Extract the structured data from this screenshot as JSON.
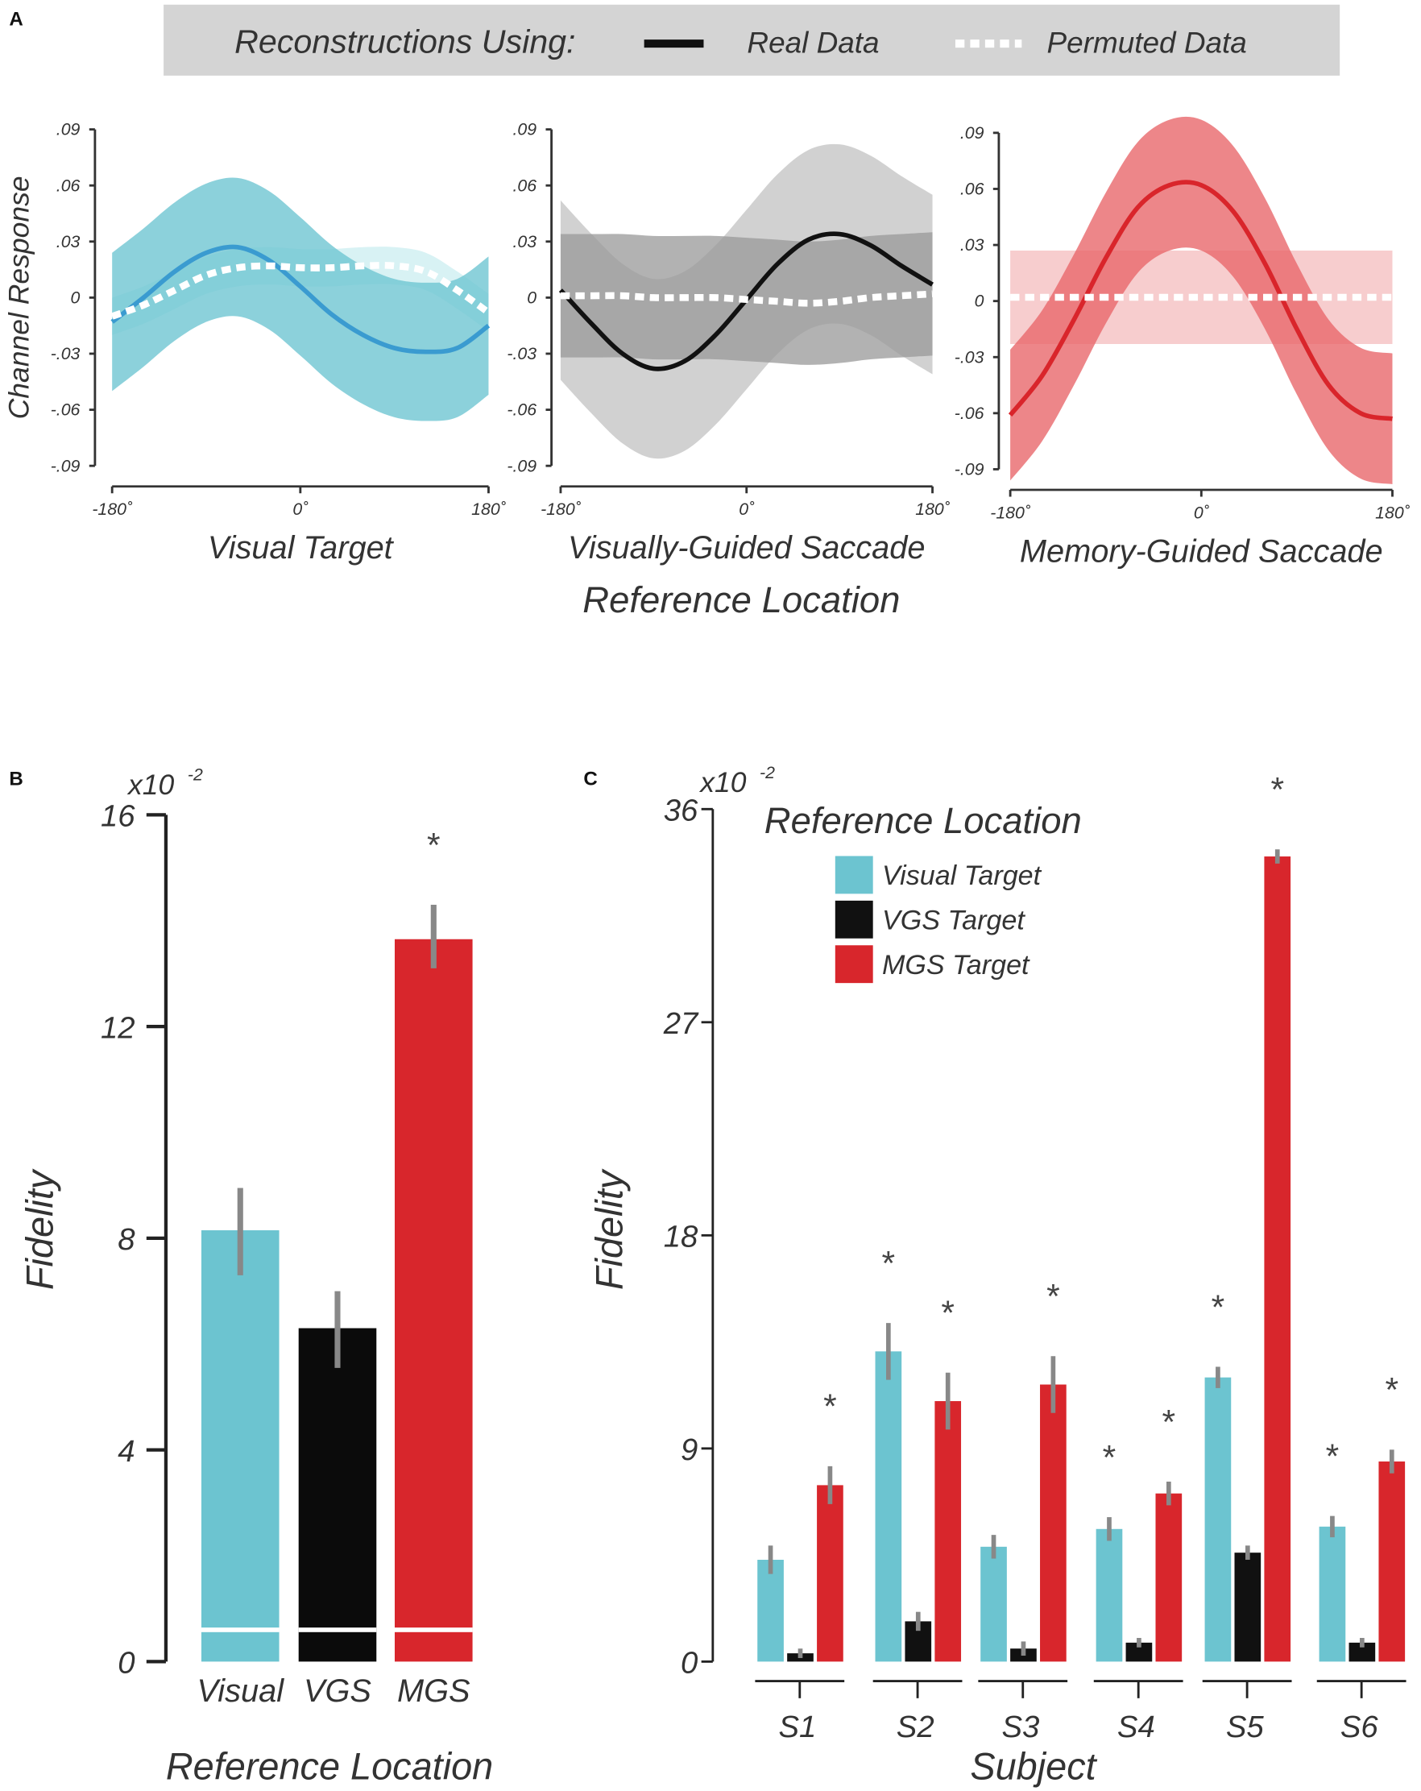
{
  "chart_data": [
    {
      "type": "line",
      "panel": "A",
      "legend": {
        "title": "Reconstructions Using:",
        "entries": [
          "Real Data",
          "Permuted Data"
        ],
        "placement": "top"
      },
      "ylabel": "Channel Response",
      "xlabel": "Reference Location",
      "ylim": [
        -0.09,
        0.09
      ],
      "yticks": [
        ".09",
        ".06",
        ".03",
        "0",
        "-.03",
        "-.06",
        "-.09"
      ],
      "xticks": [
        "-180˚",
        "0˚",
        "180˚"
      ],
      "xlim": [
        -180,
        180
      ],
      "x": [
        -180,
        -150,
        -120,
        -90,
        -60,
        -30,
        0,
        30,
        60,
        90,
        120,
        150,
        180
      ],
      "subplots": [
        {
          "title": "Visual Target",
          "color": "#3a9bd0",
          "band_color": "#6fc6d2",
          "real": [
            -0.013,
            0.0,
            0.014,
            0.024,
            0.027,
            0.02,
            0.006,
            -0.009,
            -0.02,
            -0.027,
            -0.029,
            -0.027,
            -0.015
          ],
          "real_ci": 0.037,
          "permuted": [
            -0.01,
            -0.004,
            0.004,
            0.012,
            0.016,
            0.017,
            0.016,
            0.016,
            0.017,
            0.017,
            0.014,
            0.004,
            -0.008
          ],
          "permuted_ci": 0.01
        },
        {
          "title": "Visually-Guided Saccade",
          "color": "#111111",
          "band_color": "#999999",
          "real": [
            0.004,
            -0.014,
            -0.03,
            -0.038,
            -0.034,
            -0.02,
            -0.001,
            0.018,
            0.031,
            0.034,
            0.028,
            0.017,
            0.007
          ],
          "real_ci": 0.048,
          "permuted": [
            0.001,
            0.001,
            0.001,
            0.0,
            0.0,
            0.0,
            -0.001,
            -0.002,
            -0.003,
            -0.002,
            0.0,
            0.001,
            0.002
          ],
          "permuted_ci": 0.033
        },
        {
          "title": "Memory-Guided Saccade",
          "color": "#d9252b",
          "band_color": "#e8686c",
          "real": [
            -0.061,
            -0.04,
            -0.01,
            0.023,
            0.05,
            0.062,
            0.062,
            0.048,
            0.02,
            -0.015,
            -0.045,
            -0.06,
            -0.063
          ],
          "real_ci": 0.035,
          "permuted": [
            0.002,
            0.002,
            0.002,
            0.002,
            0.002,
            0.002,
            0.002,
            0.002,
            0.002,
            0.002,
            0.002,
            0.002,
            0.002
          ],
          "permuted_ci": 0.025
        }
      ]
    },
    {
      "type": "bar",
      "panel": "B",
      "categories": [
        "Visual",
        "VGS",
        "MGS"
      ],
      "values": [
        8.15,
        6.3,
        13.65
      ],
      "errors": [
        [
          7.3,
          8.95
        ],
        [
          5.55,
          7.0
        ],
        [
          13.1,
          14.3
        ]
      ],
      "baseline_marker": 0.6,
      "colors": [
        "#6cc4d0",
        "#0b0b0b",
        "#d8262c"
      ],
      "significant": [
        false,
        false,
        true
      ],
      "star": "*",
      "ylabel": "Fidelity",
      "xlabel": "Reference Location",
      "yscale_label": "x10",
      "yscale_exp": "-2",
      "ylim": [
        0,
        16
      ],
      "yticks": [
        "0",
        "4",
        "8",
        "12",
        "16"
      ]
    },
    {
      "type": "bar",
      "panel": "C",
      "categories": [
        "S1",
        "S2",
        "S3",
        "S4",
        "S5",
        "S6"
      ],
      "legend_title": "Reference Location",
      "series": [
        {
          "name": "Visual Target",
          "color": "#6cc4d0",
          "values": [
            4.3,
            13.1,
            4.85,
            5.6,
            12.0,
            5.7
          ],
          "err": [
            0.6,
            1.2,
            0.5,
            0.5,
            0.45,
            0.45
          ],
          "sig": [
            false,
            true,
            false,
            true,
            true,
            true
          ]
        },
        {
          "name": "VGS Target",
          "color": "#111111",
          "values": [
            0.35,
            1.7,
            0.55,
            0.8,
            4.6,
            0.8
          ],
          "err": [
            0.2,
            0.4,
            0.3,
            0.2,
            0.3,
            0.2
          ],
          "sig": [
            false,
            false,
            false,
            false,
            false,
            false
          ]
        },
        {
          "name": "MGS Target",
          "color": "#d8262c",
          "values": [
            7.45,
            11.0,
            11.7,
            7.1,
            34.0,
            8.45
          ],
          "err": [
            0.8,
            1.2,
            1.2,
            0.5,
            0.3,
            0.5
          ],
          "sig": [
            true,
            true,
            true,
            true,
            true,
            true
          ]
        }
      ],
      "star": "*",
      "ylabel": "Fidelity",
      "xlabel": "Subject",
      "yscale_label": "x10",
      "yscale_exp": "-2",
      "ylim": [
        0,
        36
      ],
      "yticks": [
        "0",
        "9",
        "18",
        "27",
        "36"
      ]
    }
  ],
  "panel_labels": [
    "A",
    "B",
    "C"
  ]
}
